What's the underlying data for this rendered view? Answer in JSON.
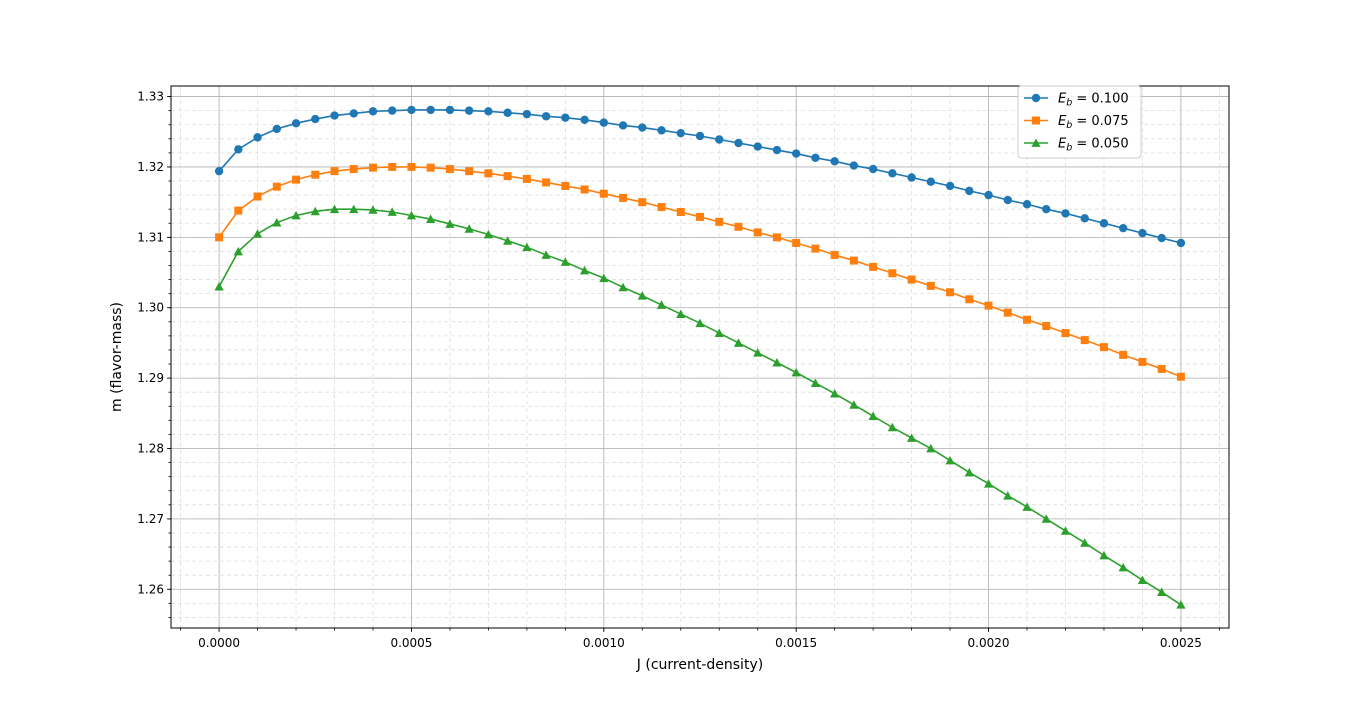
{
  "chart_data": {
    "type": "line",
    "title": "",
    "xlabel": "J (current-density)",
    "ylabel": "m (flavor-mass)",
    "xlim": [
      -0.000125,
      0.002625
    ],
    "ylim": [
      1.2545,
      1.3315
    ],
    "x_ticks": [
      0.0,
      0.0005,
      0.001,
      0.0015,
      0.002,
      0.0025
    ],
    "x_tick_labels": [
      "0.0000",
      "0.0005",
      "0.0010",
      "0.0015",
      "0.0020",
      "0.0025"
    ],
    "y_ticks": [
      1.26,
      1.27,
      1.28,
      1.29,
      1.3,
      1.31,
      1.32,
      1.33
    ],
    "y_tick_labels": [
      "1.26",
      "1.27",
      "1.28",
      "1.29",
      "1.30",
      "1.31",
      "1.32",
      "1.33"
    ],
    "grid": true,
    "minor_grid": true,
    "legend_position": "top-right",
    "x": [
      0.0,
      5e-05,
      0.0001,
      0.00015,
      0.0002,
      0.00025,
      0.0003,
      0.00035,
      0.0004,
      0.00045,
      0.0005,
      0.00055,
      0.0006,
      0.00065,
      0.0007,
      0.00075,
      0.0008,
      0.00085,
      0.0009,
      0.00095,
      0.001,
      0.00105,
      0.0011,
      0.00115,
      0.0012,
      0.00125,
      0.0013,
      0.00135,
      0.0014,
      0.00145,
      0.0015,
      0.00155,
      0.0016,
      0.00165,
      0.0017,
      0.00175,
      0.0018,
      0.00185,
      0.0019,
      0.00195,
      0.002,
      0.00205,
      0.0021,
      0.00215,
      0.0022,
      0.00225,
      0.0023,
      0.00235,
      0.0024,
      0.00245,
      0.0025
    ],
    "series": [
      {
        "name": "E_b = 0.100",
        "label_main": "E",
        "label_sub": "b",
        "label_rest": " = 0.100",
        "color": "#1f77b4",
        "marker": "circle",
        "values": [
          1.3194,
          1.3225,
          1.3242,
          1.3254,
          1.3262,
          1.3268,
          1.3273,
          1.3276,
          1.3279,
          1.328,
          1.3281,
          1.3281,
          1.3281,
          1.328,
          1.3279,
          1.3277,
          1.3275,
          1.3272,
          1.327,
          1.3267,
          1.3263,
          1.3259,
          1.3256,
          1.3252,
          1.3248,
          1.3244,
          1.3239,
          1.3234,
          1.3229,
          1.3224,
          1.3219,
          1.3213,
          1.3208,
          1.3202,
          1.3197,
          1.3191,
          1.3185,
          1.3179,
          1.3173,
          1.3166,
          1.316,
          1.3153,
          1.3147,
          1.314,
          1.3134,
          1.3127,
          1.312,
          1.3113,
          1.3106,
          1.3099,
          1.3092
        ]
      },
      {
        "name": "E_b = 0.075",
        "label_main": "E",
        "label_sub": "b",
        "label_rest": " = 0.075",
        "color": "#ff7f0e",
        "marker": "square",
        "values": [
          1.31,
          1.3138,
          1.3158,
          1.3172,
          1.3182,
          1.3189,
          1.3194,
          1.3197,
          1.3199,
          1.32,
          1.32,
          1.3199,
          1.3197,
          1.3194,
          1.3191,
          1.3187,
          1.3183,
          1.3178,
          1.3173,
          1.3168,
          1.3162,
          1.3156,
          1.315,
          1.3143,
          1.3136,
          1.3129,
          1.3122,
          1.3115,
          1.3107,
          1.31,
          1.3092,
          1.3084,
          1.3075,
          1.3067,
          1.3058,
          1.3049,
          1.304,
          1.3031,
          1.3022,
          1.3012,
          1.3003,
          1.2993,
          1.2983,
          1.2974,
          1.2964,
          1.2954,
          1.2944,
          1.2933,
          1.2923,
          1.2913,
          1.2902
        ]
      },
      {
        "name": "E_b = 0.050",
        "label_main": "E",
        "label_sub": "b",
        "label_rest": " = 0.050",
        "color": "#2ca02c",
        "marker": "triangle",
        "values": [
          1.303,
          1.308,
          1.3105,
          1.3121,
          1.3131,
          1.3137,
          1.314,
          1.314,
          1.3139,
          1.3136,
          1.3131,
          1.3126,
          1.3119,
          1.3112,
          1.3104,
          1.3095,
          1.3086,
          1.3075,
          1.3065,
          1.3053,
          1.3042,
          1.3029,
          1.3017,
          1.3004,
          1.2991,
          1.2978,
          1.2964,
          1.295,
          1.2936,
          1.2922,
          1.2908,
          1.2893,
          1.2878,
          1.2862,
          1.2846,
          1.283,
          1.2815,
          1.28,
          1.2783,
          1.2766,
          1.275,
          1.2733,
          1.2717,
          1.27,
          1.2683,
          1.2666,
          1.2648,
          1.2631,
          1.2613,
          1.2596,
          1.2578
        ]
      }
    ]
  }
}
